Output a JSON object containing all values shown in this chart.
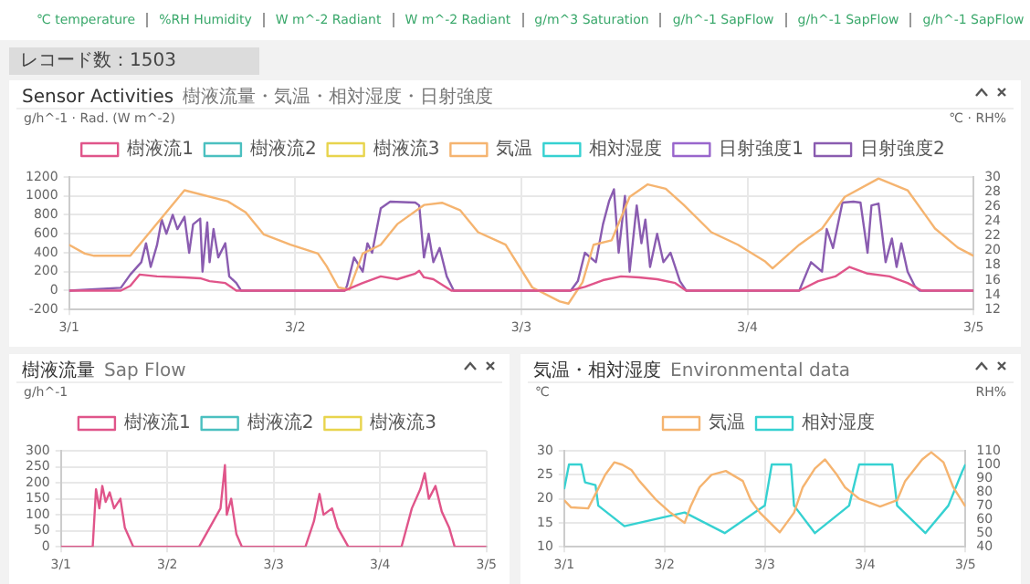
{
  "chart_data": [
    {
      "type": "line",
      "title": "Sensor Activities",
      "subtitle": "樹液流量・気温・相対湿度・日射強度",
      "ylabel": "g/h^-1 · Rad. (W m^-2)",
      "y2label": "℃ · RH%",
      "annotations": [
        "℃ temperature",
        "%RH Humidity",
        "W m^-2 Radiant",
        "W m^-2 Radiant",
        "g/m^3 Saturation",
        "g/h^-1 SapFlow",
        "g/h^-1 SapFlow",
        "g/h^-1 SapFlow",
        "レコード数：1503"
      ],
      "xlim": [
        "--03-01",
        "--03-05"
      ],
      "xticks": [
        {
          "value": "--03-01",
          "label": "3/1"
        },
        {
          "value": "--03-02",
          "label": "3/2"
        },
        {
          "value": "--03-03",
          "label": "3/3"
        },
        {
          "value": "--03-04",
          "label": "3/4"
        },
        {
          "value": "--03-05",
          "label": "3/5"
        }
      ],
      "ylim": [
        -200,
        1200
      ],
      "yticks": [
        -200,
        0,
        200,
        400,
        600,
        800,
        1000,
        1200
      ],
      "y2lim": [
        12,
        30
      ],
      "y2ticks": [
        12,
        14,
        16,
        18,
        20,
        22,
        24,
        26,
        28,
        30
      ],
      "grid": true,
      "legend": "top",
      "marker": "none",
      "series": [
        {
          "name": "樹液流1",
          "color": "#e0558a",
          "x": [
            "--03-01",
            "--03-01T05:30",
            "--03-01T06:30",
            "--03-01T07:30",
            "--03-01T09:20",
            "--03-01T12:15",
            "--03-01T13:55",
            "--03-01T14:55",
            "--03-01T16:35",
            "--03-01T17:45",
            "--03-02T05:15",
            "--03-02T07:10",
            "--03-02T09:05",
            "--03-02T10:50",
            "--03-02T12:45",
            "--03-02T13:10",
            "--03-02T13:40",
            "--03-02T14:40",
            "--03-02T16:35",
            "--03-03T05:15",
            "--03-03T06:45",
            "--03-03T08:40",
            "--03-03T10:35",
            "--03-03T12:30",
            "--03-03T14:25",
            "--03-03T16:20",
            "--03-03T17:30",
            "--03-04T05:30",
            "--03-04T07:30",
            "--03-04T09:20",
            "--03-04T10:50",
            "--03-04T12:45",
            "--03-04T15:05",
            "--03-04T17:00",
            "--03-04T18:30",
            "--03-05"
          ],
          "values": [
            0,
            0,
            50,
            170,
            150,
            140,
            130,
            100,
            80,
            0,
            0,
            80,
            150,
            120,
            180,
            210,
            140,
            120,
            0,
            0,
            40,
            110,
            150,
            140,
            120,
            80,
            0,
            0,
            100,
            150,
            250,
            180,
            150,
            80,
            0,
            0
          ]
        },
        {
          "name": "樹液流2",
          "color": "#4bc0c0"
        },
        {
          "name": "樹液流3",
          "color": "#e8d44d"
        },
        {
          "name": "気温",
          "color": "#f5b470",
          "axis": "y2",
          "x": [
            "--03-01",
            "--03-01T01:40",
            "--03-01T02:40",
            "--03-01T06:30",
            "--03-01T12:15",
            "--03-01T16:50",
            "--03-01T18:45",
            "--03-01T20:40",
            "--03-01T23:30",
            "--03-02T02:25",
            "--03-02T03:20",
            "--03-02T04:35",
            "--03-02T05:45",
            "--03-02T07:10",
            "--03-02T09:05",
            "--03-02T10:50",
            "--03-02T13:40",
            "--03-02T15:35",
            "--03-02T17:30",
            "--03-02T19:25",
            "--03-02T22:20",
            "--03-03T01:10",
            "--03-03T04:05",
            "--03-03T05:00",
            "--03-03T06:30",
            "--03-03T07:40",
            "--03-03T09:35",
            "--03-03T11:30",
            "--03-03T13:25",
            "--03-03T15:20",
            "--03-03T17:15",
            "--03-03T20:10",
            "--03-03T23:00",
            "--03-04T01:55",
            "--03-04T02:40",
            "--03-04T05:30",
            "--03-04T07:55",
            "--03-04T10:20",
            "--03-04T13:55",
            "--03-04T17:00",
            "--03-04T19:55",
            "--03-04T22:20",
            "--03-05"
          ],
          "values": [
            20.8,
            19.6,
            19.3,
            19.3,
            28.2,
            26.7,
            25.2,
            22.2,
            20.8,
            19.6,
            17.9,
            15,
            14.7,
            19.6,
            20.8,
            23.6,
            26.2,
            26.5,
            25.5,
            22.5,
            20.8,
            15,
            13.1,
            12.8,
            15.7,
            20.8,
            21.4,
            27.3,
            29,
            28.4,
            26.2,
            22.5,
            20.8,
            18.5,
            17.6,
            20.8,
            23,
            27.3,
            29.8,
            28.2,
            23,
            20.4,
            19.3
          ]
        },
        {
          "name": "相対湿度",
          "color": "#36d1d1",
          "axis": "y2"
        },
        {
          "name": "日射強度1",
          "color": "#9966cc"
        },
        {
          "name": "日射強度2",
          "color": "#8a5cb0",
          "x": [
            "--03-01",
            "--03-01T05:30",
            "--03-01T06:00",
            "--03-01T06:30",
            "--03-01T07:40",
            "--03-01T08:10",
            "--03-01T08:40",
            "--03-01T09:20",
            "--03-01T09:50",
            "--03-01T10:20",
            "--03-01T11:00",
            "--03-01T11:30",
            "--03-01T12:15",
            "--03-01T12:45",
            "--03-01T13:10",
            "--03-01T13:55",
            "--03-01T14:10",
            "--03-01T14:40",
            "--03-01T14:55",
            "--03-01T15:20",
            "--03-01T15:50",
            "--03-01T16:35",
            "--03-01T17:00",
            "--03-01T17:45",
            "--03-01T18:15",
            "--03-02T05:15",
            "--03-02T05:30",
            "--03-02T06:15",
            "--03-02T07:10",
            "--03-02T07:40",
            "--03-02T08:10",
            "--03-02T09:05",
            "--03-02T10:05",
            "--03-02T12:45",
            "--03-02T13:10",
            "--03-02T13:40",
            "--03-02T14:10",
            "--03-02T14:40",
            "--03-02T15:20",
            "--03-02T16:05",
            "--03-02T16:50",
            "--03-03T05:15",
            "--03-03T06:00",
            "--03-03T06:45",
            "--03-03T07:55",
            "--03-03T08:40",
            "--03-03T09:20",
            "--03-03T09:50",
            "--03-03T10:20",
            "--03-03T11:00",
            "--03-03T11:30",
            "--03-03T12:15",
            "--03-03T12:45",
            "--03-03T13:10",
            "--03-03T13:40",
            "--03-03T14:25",
            "--03-03T15:05",
            "--03-03T15:50",
            "--03-03T16:50",
            "--03-03T17:30",
            "--03-04T05:30",
            "--03-04T06:45",
            "--03-04T07:55",
            "--03-04T08:25",
            "--03-04T09:05",
            "--03-04T10:05",
            "--03-04T11:15",
            "--03-04T12:00",
            "--03-04T12:45",
            "--03-04T13:10",
            "--03-04T13:55",
            "--03-04T14:40",
            "--03-04T15:20",
            "--03-04T15:50",
            "--03-04T16:20",
            "--03-04T17:00",
            "--03-04T17:45",
            "--03-04T18:15",
            "--03-05"
          ],
          "values": [
            0,
            30,
            100,
            170,
            300,
            500,
            250,
            480,
            750,
            600,
            800,
            650,
            780,
            400,
            700,
            760,
            200,
            720,
            300,
            650,
            350,
            500,
            150,
            80,
            0,
            0,
            50,
            350,
            200,
            500,
            400,
            870,
            940,
            930,
            900,
            350,
            600,
            300,
            450,
            150,
            0,
            0,
            100,
            400,
            300,
            700,
            950,
            1070,
            400,
            1000,
            200,
            900,
            500,
            750,
            250,
            600,
            300,
            400,
            100,
            0,
            0,
            300,
            200,
            650,
            450,
            930,
            940,
            930,
            400,
            900,
            920,
            300,
            550,
            250,
            500,
            200,
            50,
            0,
            0
          ]
        }
      ]
    },
    {
      "type": "line",
      "title": "樹液流量",
      "subtitle": "Sap Flow",
      "ylabel": "g/h^-1",
      "xlim": [
        "--03-01",
        "--03-05"
      ],
      "xticks": [
        {
          "value": "--03-01",
          "label": "3/1"
        },
        {
          "value": "--03-02",
          "label": "3/2"
        },
        {
          "value": "--03-03",
          "label": "3/3"
        },
        {
          "value": "--03-04",
          "label": "3/4"
        },
        {
          "value": "--03-05",
          "label": "3/5"
        }
      ],
      "ylim": [
        0,
        300
      ],
      "yticks": [
        0,
        50,
        100,
        150,
        200,
        250,
        300
      ],
      "grid": true,
      "legend": "top",
      "marker": "none",
      "series": [
        {
          "name": "樹液流1",
          "color": "#e0558a",
          "x": [
            "--03-01",
            "--03-01T07:10",
            "--03-01T07:55",
            "--03-01T08:40",
            "--03-01T09:20",
            "--03-01T10:05",
            "--03-01T11:00",
            "--03-01T12:00",
            "--03-01T13:25",
            "--03-01T14:25",
            "--03-01T16:20",
            "--03-02T07:10",
            "--03-02T09:35",
            "--03-02T12:00",
            "--03-02T13:00",
            "--03-02T13:25",
            "--03-02T14:25",
            "--03-02T15:35",
            "--03-02T16:50",
            "--03-03T07:10",
            "--03-03T09:05",
            "--03-03T10:20",
            "--03-03T11:15",
            "--03-03T13:10",
            "--03-03T14:25",
            "--03-03T16:50",
            "--03-04T04:50",
            "--03-04T07:10",
            "--03-04T09:05",
            "--03-04T10:05",
            "--03-04T11:00",
            "--03-04T12:30",
            "--03-04T13:55",
            "--03-04T15:35",
            "--03-04T16:50",
            "--03-05"
          ],
          "values": [
            0,
            0,
            180,
            120,
            190,
            140,
            170,
            120,
            150,
            60,
            0,
            0,
            60,
            120,
            255,
            100,
            150,
            40,
            0,
            0,
            80,
            165,
            100,
            120,
            60,
            0,
            0,
            120,
            180,
            230,
            150,
            190,
            110,
            60,
            0,
            0
          ]
        },
        {
          "name": "樹液流2",
          "color": "#4bc0c0"
        },
        {
          "name": "樹液流3",
          "color": "#e8d44d"
        }
      ]
    },
    {
      "type": "line",
      "title": "気温・相対湿度",
      "subtitle": "Environmental data",
      "ylabel": "℃",
      "y2label": "RH%",
      "xlim": [
        "--03-01",
        "--03-05"
      ],
      "xticks": [
        {
          "value": "--03-01",
          "label": "3/1"
        },
        {
          "value": "--03-02",
          "label": "3/2"
        },
        {
          "value": "--03-03",
          "label": "3/3"
        },
        {
          "value": "--03-04",
          "label": "3/4"
        },
        {
          "value": "--03-05",
          "label": "3/5"
        }
      ],
      "ylim": [
        10,
        30
      ],
      "yticks": [
        10,
        15,
        20,
        25,
        30
      ],
      "y2lim": [
        40,
        110
      ],
      "y2ticks": [
        40,
        50,
        60,
        70,
        80,
        90,
        100,
        110
      ],
      "grid": true,
      "legend": "top",
      "marker": "none",
      "series": [
        {
          "name": "気温",
          "color": "#f5b470",
          "x": [
            "--03-01",
            "--03-01T01:40",
            "--03-01T05:45",
            "--03-01T07:30",
            "--03-01T09:50",
            "--03-01T12:00",
            "--03-01T13:55",
            "--03-01T16:05",
            "--03-01T18:00",
            "--03-01T22:05",
            "--03-02T01:25",
            "--03-02T04:50",
            "--03-02T06:15",
            "--03-02T08:25",
            "--03-02T11:15",
            "--03-02T14:40",
            "--03-02T18:45",
            "--03-02T20:40",
            "--03-02T22:50",
            "--03-03T03:35",
            "--03-03T07:00",
            "--03-03T09:05",
            "--03-03T12:00",
            "--03-03T14:25",
            "--03-03T17:15",
            "--03-03T19:10",
            "--03-03T22:35",
            "--03-04T03:35",
            "--03-04T07:40",
            "--03-04T09:35",
            "--03-04T13:40",
            "--03-04T15:50",
            "--03-04T18:45",
            "--03-04T21:05",
            "--03-05"
          ],
          "values": [
            19.7,
            18.2,
            18,
            21,
            25,
            27.6,
            27.1,
            26,
            23.7,
            19.7,
            17.1,
            15,
            18.4,
            22.4,
            25,
            25.8,
            23.7,
            19.7,
            17.1,
            13,
            17.1,
            22.4,
            26.3,
            28.2,
            25,
            22.4,
            20,
            18.4,
            19.7,
            23.7,
            28.2,
            29.7,
            27.6,
            22.4,
            18.4
          ]
        },
        {
          "name": "相対湿度",
          "color": "#36d1d1",
          "axis": "y2",
          "x": [
            "--03-01",
            "--03-01T01:10",
            "--03-01T04:05",
            "--03-01T05:00",
            "--03-01T07:30",
            "--03-01T08:10",
            "--03-01T14:25",
            "--03-02T04:50",
            "--03-02T14:25",
            "--03-03",
            "--03-03T01:40",
            "--03-03T06:15",
            "--03-03T07:00",
            "--03-03T12:00",
            "--03-03T20:10",
            "--03-03T22:35",
            "--03-04T06:30",
            "--03-04T07:40",
            "--03-04T14:25",
            "--03-04T19:55",
            "--03-04T23:15",
            "--03-05"
          ],
          "values": [
            82,
            100,
            100,
            87,
            85,
            70,
            55,
            65,
            50,
            70,
            100,
            100,
            70,
            50,
            70,
            100,
            100,
            70,
            50,
            70,
            95,
            100
          ]
        }
      ]
    }
  ]
}
